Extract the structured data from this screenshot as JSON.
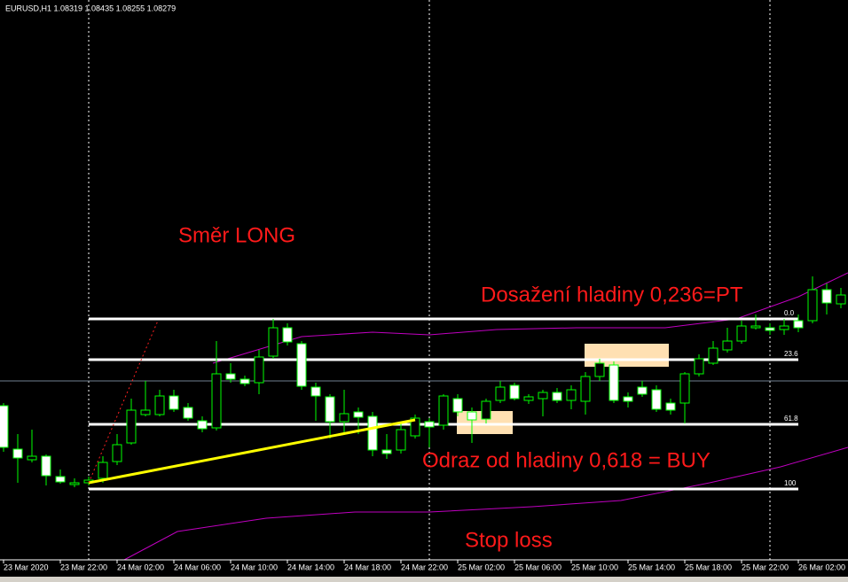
{
  "chart_data": {
    "type": "candlestick",
    "title": "EURUSD,H1  1.08319 1.08435 1.08255 1.08279",
    "annotations": [
      "Směr LONG",
      "Dosažení hladiny 0,236=PT",
      "Odraz od hladiny 0,618 = BUY",
      "Stop loss"
    ],
    "categories": [
      "23 Mar 2020",
      null,
      null,
      null,
      "23 Mar 22:00",
      null,
      null,
      null,
      "24 Mar 02:00",
      null,
      null,
      null,
      "24 Mar 06:00",
      null,
      null,
      null,
      "24 Mar 10:00",
      null,
      null,
      null,
      "24 Mar 14:00",
      null,
      null,
      null,
      "24 Mar 18:00",
      null,
      null,
      null,
      "24 Mar 22:00",
      null,
      null,
      null,
      "25 Mar 02:00",
      null,
      null,
      null,
      "25 Mar 06:00",
      null,
      null,
      null,
      "25 Mar 10:00",
      null,
      null,
      null,
      "25 Mar 14:00",
      null,
      null,
      null,
      "25 Mar 18:00",
      null,
      null,
      null,
      "25 Mar 22:00",
      null,
      null,
      null,
      "26 Mar 02:00",
      null,
      null,
      null
    ],
    "open": [
      1.0771,
      1.07465,
      1.07405,
      1.07425,
      1.0731,
      1.07265,
      1.07275,
      1.073,
      1.07395,
      1.075,
      1.0766,
      1.0766,
      1.07765,
      1.077,
      1.07625,
      1.07585,
      1.0789,
      1.0786,
      1.0784,
      1.0799,
      1.0815,
      1.0806,
      1.07815,
      1.0776,
      1.0762,
      1.07675,
      1.0765,
      1.0746,
      1.0746,
      1.0754,
      1.0762,
      1.076,
      1.0775,
      1.07675,
      1.07635,
      1.0774,
      1.07825,
      1.0774,
      1.0775,
      1.07785,
      1.0774,
      1.07735,
      1.07875,
      1.0794,
      1.0776,
      1.07815,
      1.078,
      1.07725,
      1.07725,
      1.0789,
      1.0795,
      1.08025,
      1.08075,
      1.0815,
      1.0815,
      1.0814,
      1.0819,
      1.0819,
      1.08365,
      1.08285
    ],
    "high": [
      1.07725,
      1.0755,
      1.07575,
      1.07435,
      1.0735,
      1.073,
      1.0731,
      1.07425,
      1.0755,
      1.0775,
      1.0785,
      1.078,
      1.078,
      1.07725,
      1.0765,
      1.08075,
      1.0795,
      1.0788,
      1.08025,
      1.082,
      1.08175,
      1.08075,
      1.0784,
      1.07775,
      1.078,
      1.077,
      1.07675,
      1.0755,
      1.0761,
      1.0766,
      1.0764,
      1.07775,
      1.07775,
      1.077,
      1.0775,
      1.0785,
      1.0784,
      1.07775,
      1.078,
      1.0781,
      1.07825,
      1.079,
      1.07975,
      1.0796,
      1.07785,
      1.0785,
      1.07825,
      1.0775,
      1.079,
      1.08,
      1.08075,
      1.0815,
      1.0819,
      1.08225,
      1.08175,
      1.082,
      1.08225,
      1.0844,
      1.084,
      1.08375
    ],
    "low": [
      1.0745,
      1.07275,
      1.0739,
      1.0726,
      1.0727,
      1.0725,
      1.0726,
      1.07275,
      1.07375,
      1.0749,
      1.0765,
      1.0765,
      1.07675,
      1.07625,
      1.0756,
      1.0757,
      1.0784,
      1.0782,
      1.07775,
      1.07975,
      1.0805,
      1.078,
      1.07625,
      1.07525,
      1.0755,
      1.0755,
      1.07425,
      1.0741,
      1.0744,
      1.07525,
      1.07475,
      1.07575,
      1.0765,
      1.075,
      1.0761,
      1.07725,
      1.0774,
      1.0772,
      1.0765,
      1.07725,
      1.0769,
      1.0766,
      1.0785,
      1.07725,
      1.077,
      1.0776,
      1.07675,
      1.0766,
      1.0761,
      1.07875,
      1.0794,
      1.0801,
      1.0806,
      1.0814,
      1.0811,
      1.0811,
      1.08125,
      1.08175,
      1.08225,
      1.0826
    ],
    "close": [
      1.07475,
      1.07415,
      1.07425,
      1.07315,
      1.0728,
      1.07275,
      1.0729,
      1.0739,
      1.0749,
      1.07685,
      1.07685,
      1.07765,
      1.0769,
      1.0764,
      1.0758,
      1.0789,
      1.0786,
      1.07835,
      1.07985,
      1.0815,
      1.0807,
      1.0782,
      1.07765,
      1.0762,
      1.07665,
      1.07645,
      1.0746,
      1.0744,
      1.07575,
      1.0764,
      1.0759,
      1.07765,
      1.07675,
      1.0763,
      1.07735,
      1.07815,
      1.0775,
      1.0776,
      1.07785,
      1.0774,
      1.078,
      1.07875,
      1.0795,
      1.0774,
      1.07735,
      1.07775,
      1.0769,
      1.07685,
      1.0789,
      1.07975,
      1.08035,
      1.08075,
      1.0816,
      1.0816,
      1.08135,
      1.0816,
      1.0815,
      1.08365,
      1.0829,
      1.08335
    ],
    "ylim": [
      1.0685,
      1.1
    ],
    "fib_levels": [
      {
        "value": 1.082,
        "label": "0.0"
      },
      {
        "value": 1.0797,
        "label": "23.6"
      },
      {
        "value": 1.07605,
        "label": "61.8"
      },
      {
        "value": 1.0724,
        "label": "100"
      }
    ],
    "up_color": "#00ff00",
    "down_color": "#ffffff",
    "fib_color": "#ffffff"
  }
}
